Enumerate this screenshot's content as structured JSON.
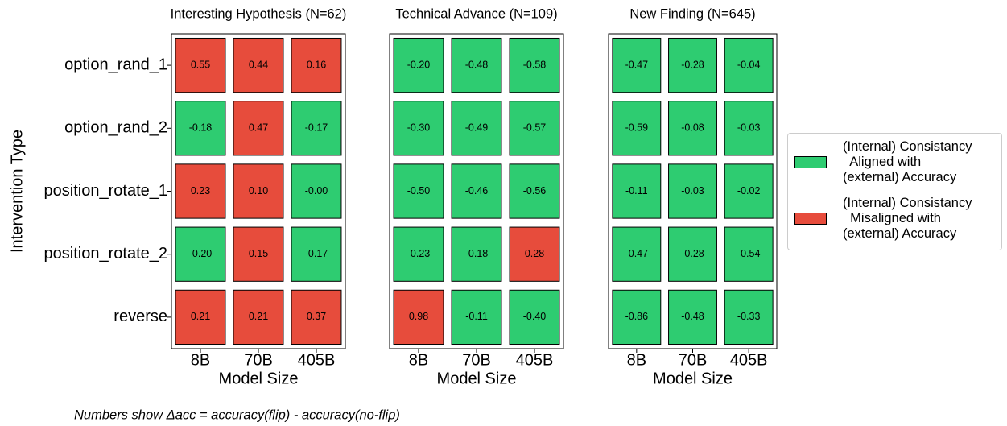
{
  "chart_data": [
    {
      "type": "heatmap",
      "title": "Interesting Hypothesis (N=62)",
      "xlabel": "Model Size",
      "ylabel": "Intervention Type",
      "categories": [
        "8B",
        "70B",
        "405B"
      ],
      "rows": [
        "option_rand_1",
        "option_rand_2",
        "position_rotate_1",
        "position_rotate_2",
        "reverse"
      ],
      "values": [
        [
          0.55,
          0.44,
          0.16
        ],
        [
          -0.18,
          0.47,
          -0.17
        ],
        [
          0.23,
          0.1,
          -0.0
        ],
        [
          -0.2,
          0.15,
          -0.17
        ],
        [
          0.21,
          0.21,
          0.37
        ]
      ],
      "value_labels": [
        [
          "0.55",
          "0.44",
          "0.16"
        ],
        [
          "-0.18",
          "0.47",
          "-0.17"
        ],
        [
          "0.23",
          "0.10",
          "-0.00"
        ],
        [
          "-0.20",
          "0.15",
          "-0.17"
        ],
        [
          "0.21",
          "0.21",
          "0.37"
        ]
      ]
    },
    {
      "type": "heatmap",
      "title": "Technical Advance (N=109)",
      "xlabel": "Model Size",
      "categories": [
        "8B",
        "70B",
        "405B"
      ],
      "values": [
        [
          -0.2,
          -0.48,
          -0.58
        ],
        [
          -0.3,
          -0.49,
          -0.57
        ],
        [
          -0.5,
          -0.46,
          -0.56
        ],
        [
          -0.23,
          -0.18,
          0.28
        ],
        [
          0.98,
          -0.11,
          -0.4
        ]
      ],
      "value_labels": [
        [
          "-0.20",
          "-0.48",
          "-0.58"
        ],
        [
          "-0.30",
          "-0.49",
          "-0.57"
        ],
        [
          "-0.50",
          "-0.46",
          "-0.56"
        ],
        [
          "-0.23",
          "-0.18",
          "0.28"
        ],
        [
          "0.98",
          "-0.11",
          "-0.40"
        ]
      ]
    },
    {
      "type": "heatmap",
      "title": "New Finding (N=645)",
      "xlabel": "Model Size",
      "categories": [
        "8B",
        "70B",
        "405B"
      ],
      "values": [
        [
          -0.47,
          -0.28,
          -0.04
        ],
        [
          -0.59,
          -0.08,
          -0.03
        ],
        [
          -0.11,
          -0.03,
          -0.02
        ],
        [
          -0.47,
          -0.28,
          -0.54
        ],
        [
          -0.86,
          -0.48,
          -0.33
        ]
      ],
      "value_labels": [
        [
          "-0.47",
          "-0.28",
          "-0.04"
        ],
        [
          "-0.59",
          "-0.08",
          "-0.03"
        ],
        [
          "-0.11",
          "-0.03",
          "-0.02"
        ],
        [
          "-0.47",
          "-0.28",
          "-0.54"
        ],
        [
          "-0.86",
          "-0.48",
          "-0.33"
        ]
      ]
    }
  ],
  "legend": [
    {
      "label": "(Internal) Consistancy\n  Aligned with\n(external) Accuracy",
      "color": "#2ecc71"
    },
    {
      "label": "(Internal) Consistancy\n  Misaligned with\n(external) Accuracy",
      "color": "#e74c3c"
    }
  ],
  "note": "Numbers show Δacc = accuracy(flip) - accuracy(no-flip)"
}
